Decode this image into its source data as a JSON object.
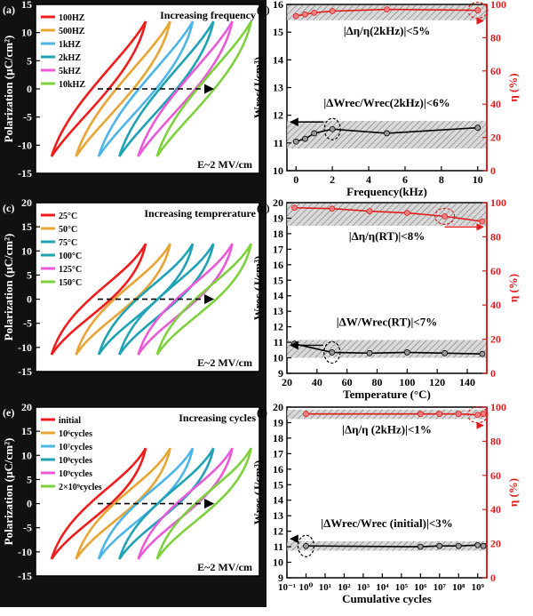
{
  "panels": {
    "a": {
      "label": "(a)",
      "title": "Increasing frequency",
      "ylabel": "Polarization (μC/cm²)",
      "field_note": "E~2 MV/cm",
      "yticks": [
        "15",
        "10",
        "5",
        "0",
        "-5",
        "-10",
        "-15"
      ],
      "legend": [
        {
          "name": "100HZ",
          "color": "#ee1c1c"
        },
        {
          "name": "500HZ",
          "color": "#e8a435"
        },
        {
          "name": "1kHZ",
          "color": "#4db5e8"
        },
        {
          "name": "2kHZ",
          "color": "#1ea2b4"
        },
        {
          "name": "5kHZ",
          "color": "#e85ad8"
        },
        {
          "name": "10kHZ",
          "color": "#7ed13e"
        }
      ]
    },
    "c": {
      "label": "(c)",
      "title": "Increasing temprerature",
      "ylabel": "Polarization (μC/cm²)",
      "field_note": "E~2 MV/cm",
      "yticks": [
        "20",
        "15",
        "10",
        "5",
        "0",
        "-5",
        "-10",
        "-15"
      ],
      "legend": [
        {
          "name": "25°C",
          "color": "#ee1c1c"
        },
        {
          "name": "50°C",
          "color": "#e8a435"
        },
        {
          "name": "75°C",
          "color": "#1ea2b4"
        },
        {
          "name": "100°C",
          "color": "#1ea2b4"
        },
        {
          "name": "125°C",
          "color": "#e85ad8"
        },
        {
          "name": "150°C",
          "color": "#7ed13e"
        }
      ]
    },
    "e": {
      "label": "(e)",
      "title": "Increasing cycles",
      "ylabel": "Polarization (μC/cm²)",
      "field_note": "E~2 MV/cm",
      "yticks": [
        "20",
        "15",
        "10",
        "5",
        "0",
        "-5",
        "-10",
        "-15"
      ],
      "legend": [
        {
          "name": "initial",
          "color": "#ee1c1c"
        },
        {
          "name": "10⁶cycles",
          "color": "#e8a435"
        },
        {
          "name": "10⁷cycles",
          "color": "#4db5e8"
        },
        {
          "name": "10⁸cycles",
          "color": "#1ea2b4"
        },
        {
          "name": "10⁹cycles",
          "color": "#e85ad8"
        },
        {
          "name": "2×10⁹cycles",
          "color": "#7ed13e"
        }
      ]
    },
    "b": {
      "label": "(b)",
      "xlabel": "Frequency(kHz)",
      "xticks": [
        "0",
        "2",
        "4",
        "6",
        "8",
        "10"
      ],
      "yl_ticks": [
        "10",
        "11",
        "12",
        "13",
        "14",
        "15",
        "16"
      ],
      "yr_ticks": [
        "0",
        "20",
        "40",
        "60",
        "80",
        "100"
      ],
      "ylabel_left": "Wrec(J/cm³)",
      "ylabel_right": "η (%)",
      "annot_eta": "|Δη/η(2kHz)|<5%",
      "annot_w": "|ΔWrec/Wrec(2kHz)|<6%"
    },
    "d": {
      "label": "(d)",
      "xlabel": "Temperature (°C)",
      "xticks": [
        "20",
        "40",
        "60",
        "80",
        "100",
        "120",
        "140"
      ],
      "yl_ticks": [
        "9",
        "10",
        "11",
        "12",
        "13",
        "14",
        "15",
        "16",
        "17",
        "18",
        "19",
        "20"
      ],
      "yr_ticks": [
        "0",
        "20",
        "40",
        "60",
        "80",
        "100"
      ],
      "ylabel_left": "Wrec (J/cm³)",
      "ylabel_right": "η (%)",
      "annot_eta": "|Δη/η(RT)|<8%",
      "annot_w": "|ΔW/Wrec(RT)|<7%"
    },
    "f": {
      "label": "(f)",
      "xlabel": "Cumulative cycles",
      "xticks": [
        "10⁻¹",
        "10⁰",
        "10¹",
        "10²",
        "10³",
        "10⁴",
        "10⁵",
        "10⁶",
        "10⁷",
        "10⁸",
        "10⁹"
      ],
      "yl_ticks": [
        "9",
        "10",
        "11",
        "12",
        "13",
        "14",
        "15",
        "16",
        "17",
        "18",
        "19",
        "20"
      ],
      "yr_ticks": [
        "0",
        "20",
        "40",
        "60",
        "80",
        "100"
      ],
      "ylabel_left": "Wrec (J/cm³)",
      "ylabel_right": "η (%)",
      "annot_eta": "|Δη/η (2kHz)|<1%",
      "annot_w": "|ΔWrec/Wrec (initial)|<3%"
    }
  },
  "chart_data": [
    {
      "type": "line",
      "panel": "a",
      "xlim": [
        0,
        10
      ],
      "ylim": [
        -15,
        15
      ],
      "series": [
        {
          "name": "100HZ",
          "x": [
            0.0,
            5.0
          ],
          "y": [
            -12,
            12
          ]
        },
        {
          "name": "500HZ",
          "x": [
            1.3,
            6.3
          ],
          "y": [
            -12,
            12
          ]
        },
        {
          "name": "1kHZ",
          "x": [
            2.5,
            7.5
          ],
          "y": [
            -12,
            12
          ]
        },
        {
          "name": "2kHZ",
          "x": [
            3.6,
            8.6
          ],
          "y": [
            -12,
            12
          ]
        },
        {
          "name": "5kHZ",
          "x": [
            4.6,
            9.6
          ],
          "y": [
            -12,
            12
          ]
        },
        {
          "name": "10kHZ",
          "x": [
            5.6,
            10.6
          ],
          "y": [
            -12,
            12
          ]
        }
      ]
    },
    {
      "type": "line",
      "panel": "c",
      "xlim": [
        0,
        10
      ],
      "ylim": [
        -15,
        20
      ],
      "series": [
        {
          "name": "25°C",
          "x": [
            0.0,
            5.0
          ],
          "y": [
            -11.5,
            11.5
          ]
        },
        {
          "name": "50°C",
          "x": [
            1.3,
            6.3
          ],
          "y": [
            -11.5,
            11.5
          ]
        },
        {
          "name": "75°C",
          "x": [
            2.5,
            7.5
          ],
          "y": [
            -11.5,
            11.5
          ]
        },
        {
          "name": "100°C",
          "x": [
            3.6,
            8.6
          ],
          "y": [
            -11.5,
            11.5
          ]
        },
        {
          "name": "125°C",
          "x": [
            4.6,
            9.6
          ],
          "y": [
            -11.5,
            11.5
          ]
        },
        {
          "name": "150°C",
          "x": [
            5.6,
            10.6
          ],
          "y": [
            -11.5,
            11.5
          ]
        }
      ]
    },
    {
      "type": "line",
      "panel": "e",
      "xlim": [
        0,
        10
      ],
      "ylim": [
        -15,
        20
      ],
      "series": [
        {
          "name": "initial",
          "x": [
            0.0,
            5.0
          ],
          "y": [
            -11.5,
            11.5
          ]
        },
        {
          "name": "10⁶cycles",
          "x": [
            1.3,
            6.3
          ],
          "y": [
            -11.5,
            11.5
          ]
        },
        {
          "name": "10⁷cycles",
          "x": [
            2.5,
            7.5
          ],
          "y": [
            -11.5,
            11.5
          ]
        },
        {
          "name": "10⁸cycles",
          "x": [
            3.6,
            8.6
          ],
          "y": [
            -11.5,
            11.5
          ]
        },
        {
          "name": "10⁹cycles",
          "x": [
            4.6,
            9.6
          ],
          "y": [
            -11.5,
            11.5
          ]
        },
        {
          "name": "2×10⁹cycles",
          "x": [
            5.6,
            10.6
          ],
          "y": [
            -11.5,
            11.5
          ]
        }
      ]
    },
    {
      "type": "line",
      "panel": "b",
      "xlim": [
        -0.5,
        10.5
      ],
      "ylim_left": [
        10,
        16
      ],
      "ylim_right": [
        0,
        100
      ],
      "series": [
        {
          "name": "Wrec",
          "axis": "left",
          "x": [
            0,
            0.5,
            1,
            2,
            5,
            10
          ],
          "y": [
            11.05,
            11.15,
            11.35,
            11.5,
            11.35,
            11.55
          ]
        },
        {
          "name": "η",
          "axis": "right",
          "x": [
            0,
            0.5,
            1,
            2,
            5,
            10
          ],
          "y": [
            93,
            94,
            95,
            96,
            97,
            96.5
          ]
        }
      ]
    },
    {
      "type": "line",
      "panel": "d",
      "xlim": [
        20,
        153
      ],
      "ylim_left": [
        9,
        20
      ],
      "ylim_right": [
        0,
        100
      ],
      "series": [
        {
          "name": "Wrec",
          "axis": "left",
          "x": [
            25,
            50,
            75,
            100,
            125,
            150
          ],
          "y": [
            10.9,
            10.35,
            10.3,
            10.35,
            10.3,
            10.25
          ]
        },
        {
          "name": "η",
          "axis": "right",
          "x": [
            25,
            50,
            75,
            100,
            125,
            150
          ],
          "y": [
            97,
            96.5,
            95,
            94,
            92,
            89
          ]
        }
      ]
    },
    {
      "type": "line",
      "panel": "f",
      "xscale": "log",
      "xlim": [
        0.1,
        3000000000.0
      ],
      "ylim_left": [
        9,
        20
      ],
      "ylim_right": [
        0,
        100
      ],
      "series": [
        {
          "name": "Wrec",
          "axis": "left",
          "x": [
            1,
            1000000,
            10000000,
            100000000,
            1000000000,
            2000000000
          ],
          "y": [
            11.05,
            11.0,
            11.05,
            11.05,
            11.1,
            11.05
          ]
        },
        {
          "name": "η",
          "axis": "right",
          "x": [
            1,
            1000000,
            10000000,
            100000000,
            1000000000,
            2000000000
          ],
          "y": [
            96,
            96,
            96,
            96,
            95.5,
            96
          ]
        }
      ]
    }
  ]
}
